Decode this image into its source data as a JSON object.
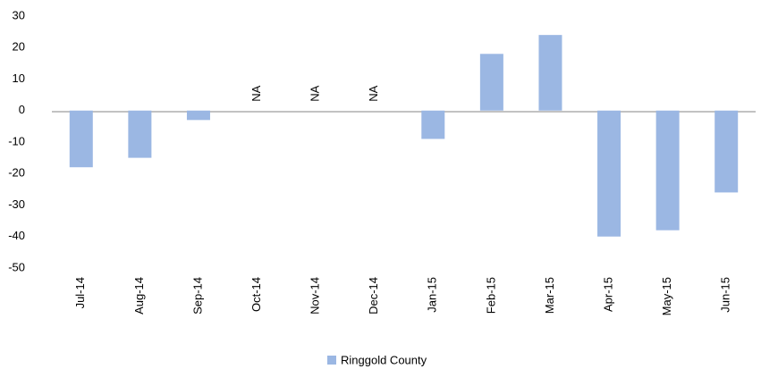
{
  "chart_data": {
    "type": "bar",
    "categories": [
      "Jul-14",
      "Aug-14",
      "Sep-14",
      "Oct-14",
      "Nov-14",
      "Dec-14",
      "Jan-15",
      "Feb-15",
      "Mar-15",
      "Apr-15",
      "May-15",
      "Jun-15"
    ],
    "series": [
      {
        "name": "Ringgold County",
        "color": "#9bb7e3",
        "values": [
          -18,
          -15,
          -3,
          null,
          null,
          null,
          -9,
          18,
          24,
          -40,
          -38,
          -26
        ]
      }
    ],
    "value_labels": [
      null,
      null,
      null,
      "NA",
      "NA",
      "NA",
      null,
      null,
      null,
      null,
      null,
      null
    ],
    "ylim": [
      -50,
      30
    ],
    "yticks": [
      -50,
      -40,
      -30,
      -20,
      -10,
      0,
      10,
      20,
      30
    ],
    "grid": false,
    "legend": "bottom"
  }
}
